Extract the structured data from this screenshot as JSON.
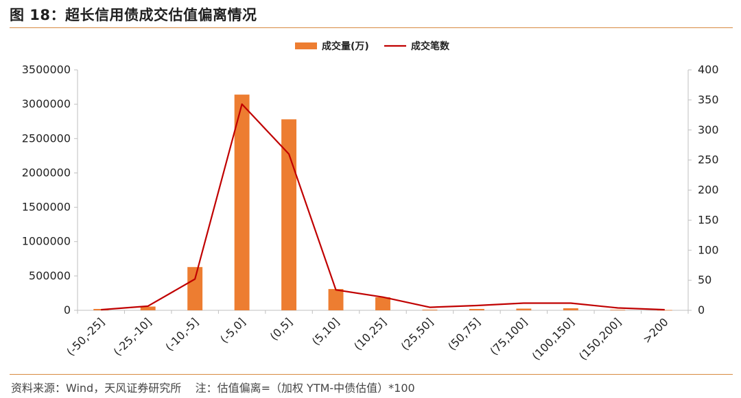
{
  "figure_title": "图 18：超长信用债成交估值偏离情况",
  "footer": {
    "source": "资料来源：Wind，天风证券研究所",
    "note": "注：估值偏离=（加权 YTM-中债估值）*100"
  },
  "chart_data": {
    "type": "bar+line",
    "categories": [
      "(-50,-25]",
      "(-25,-10]",
      "(-10,-5]",
      "(-5,0]",
      "(0,5]",
      "(5,10]",
      "(10,25]",
      "(25,50]",
      "(50,75]",
      "(75,100]",
      "(100,150]",
      "(150,200]",
      ">200"
    ],
    "series": [
      {
        "name": "成交量(万)",
        "type": "bar",
        "axis": "left",
        "color": "#ed7d31",
        "values": [
          20000,
          55000,
          630000,
          3140000,
          2780000,
          310000,
          190000,
          10000,
          20000,
          25000,
          30000,
          8000,
          5000
        ]
      },
      {
        "name": "成交笔数",
        "type": "line",
        "axis": "right",
        "color": "#c00000",
        "values": [
          1,
          7,
          52,
          343,
          260,
          34,
          22,
          5,
          8,
          12,
          12,
          4,
          1
        ]
      }
    ],
    "y_left": {
      "min": 0,
      "max": 3500000,
      "step": 500000,
      "ticks": [
        "0",
        "500000",
        "1000000",
        "1500000",
        "2000000",
        "2500000",
        "3000000",
        "3500000"
      ]
    },
    "y_right": {
      "min": 0,
      "max": 400,
      "step": 50,
      "ticks": [
        "0",
        "50",
        "100",
        "150",
        "200",
        "250",
        "300",
        "350",
        "400"
      ]
    },
    "grid": false,
    "legend_position": "top-center"
  }
}
